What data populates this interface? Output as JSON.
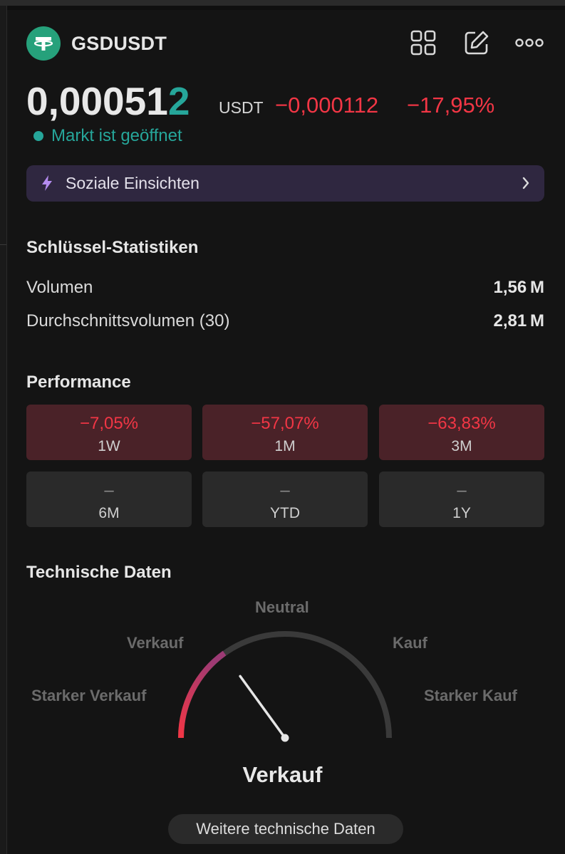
{
  "header": {
    "symbol": "GSDUSDT",
    "icons": [
      "layout-grid-icon",
      "edit-icon",
      "more-icon"
    ]
  },
  "quote": {
    "price_main": "0,00051",
    "price_last_digit": "2",
    "currency": "USDT",
    "change": "−0,000112",
    "change_percent": "−17,95%",
    "market_status": "Markt ist geöffnet"
  },
  "social": {
    "label": "Soziale Einsichten"
  },
  "key_stats": {
    "title": "Schlüssel-Statistiken",
    "rows": [
      {
        "label": "Volumen",
        "value": "1,56 M"
      },
      {
        "label": "Durchschnittsvolumen (30)",
        "value": "2,81 M"
      }
    ]
  },
  "performance": {
    "title": "Performance",
    "items": [
      {
        "value": "−7,05%",
        "period": "1W"
      },
      {
        "value": "−57,07%",
        "period": "1M"
      },
      {
        "value": "−63,83%",
        "period": "3M"
      },
      {
        "value": "–",
        "period": "6M"
      },
      {
        "value": "–",
        "period": "YTD"
      },
      {
        "value": "–",
        "period": "1Y"
      }
    ]
  },
  "technicals": {
    "title": "Technische Daten",
    "labels": {
      "strong_sell": "Starker Verkauf",
      "sell": "Verkauf",
      "neutral": "Neutral",
      "buy": "Kauf",
      "strong_buy": "Starker Kauf"
    },
    "needle_fraction": 0.3,
    "verdict": "Verkauf",
    "more_button": "Weitere technische Daten"
  },
  "colors": {
    "positive": "#26a69a",
    "negative": "#f23645",
    "tether": "#26a17b"
  }
}
